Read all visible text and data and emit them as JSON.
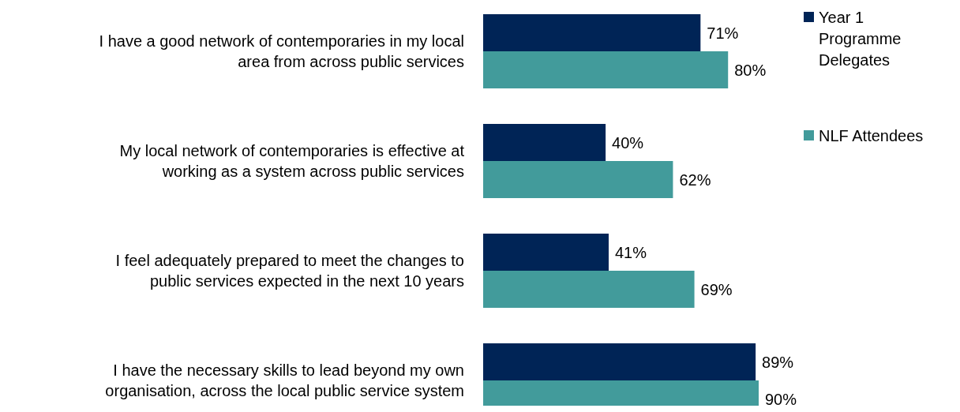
{
  "chart_data": {
    "type": "bar",
    "orientation": "horizontal",
    "categories": [
      "I have a good network of contemporaries in my local area from across public services",
      "My local network of contemporaries is effective at working as a system across public services",
      "I feel adequately prepared to meet the changes to public services expected in the next 10 years",
      "I have the necessary skills to lead beyond my own organisation, across the local public service system"
    ],
    "series": [
      {
        "name": "Year 1 Programme Delegates",
        "color": "#002456",
        "values": [
          71,
          40,
          41,
          89
        ],
        "value_labels": [
          "71%",
          "40%",
          "41%",
          "89%"
        ]
      },
      {
        "name": "NLF Attendees",
        "color": "#429b9b",
        "values": [
          80,
          62,
          69,
          90
        ],
        "value_labels": [
          "80%",
          "62%",
          "69%",
          "90%"
        ]
      }
    ],
    "legend": "right"
  }
}
